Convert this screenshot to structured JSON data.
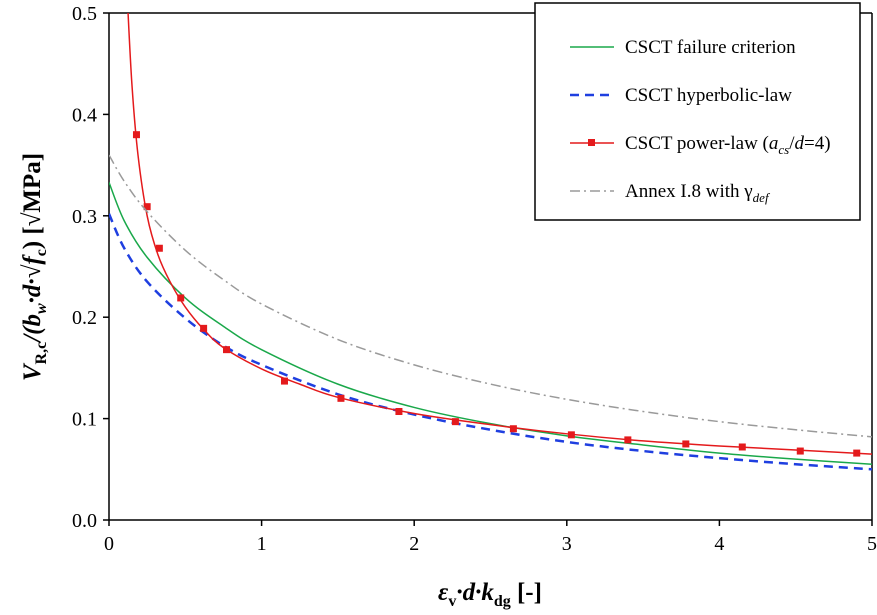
{
  "chart_data": {
    "type": "line",
    "xlim": [
      0,
      5
    ],
    "ylim": [
      0,
      0.5
    ],
    "grid": false,
    "legend_placement": "top-right",
    "x_ticks": [
      "0",
      "1",
      "2",
      "3",
      "4",
      "5"
    ],
    "y_ticks": [
      "0.0",
      "0.1",
      "0.2",
      "0.3",
      "0.4",
      "0.5"
    ],
    "xlabel": {
      "main": "ε",
      "main_sub": "v",
      "mid": "·d·k",
      "mid_sub": "dg",
      "tail": " [-]"
    },
    "ylabel": {
      "v": "V",
      "v_sub": "R,c",
      "a": "/(b",
      "a_sub": "w",
      "b": "·d·√f",
      "b_sub": "c",
      "c": ") [√MPa]"
    },
    "series": [
      {
        "name": "CSCT failure criterion",
        "color": "#1aa84a",
        "style": "solid",
        "x": [
          0,
          0.1,
          0.25,
          0.5,
          0.75,
          1,
          1.5,
          2,
          2.5,
          3,
          3.5,
          4,
          4.5,
          5
        ],
        "y": [
          0.333,
          0.295,
          0.259,
          0.219,
          0.191,
          0.168,
          0.134,
          0.111,
          0.095,
          0.083,
          0.074,
          0.066,
          0.06,
          0.055
        ]
      },
      {
        "name": "CSCT hyperbolic-law",
        "color": "#1f3fe0",
        "style": "dashed",
        "x": [
          0,
          0.1,
          0.25,
          0.5,
          0.75,
          1,
          1.5,
          2,
          2.5,
          3,
          3.5,
          4,
          4.5,
          5
        ],
        "y": [
          0.302,
          0.268,
          0.235,
          0.199,
          0.172,
          0.153,
          0.124,
          0.104,
          0.089,
          0.077,
          0.068,
          0.061,
          0.055,
          0.05
        ]
      },
      {
        "name_parts": {
          "pre": "CSCT power-law  (",
          "a": "a",
          "a_sub": "cs",
          "mid": "/",
          "d": "d",
          "post": "=4)"
        },
        "color": "#e41a1c",
        "style": "solid-markers",
        "x": [
          0.12,
          0.15,
          0.19,
          0.25,
          0.32,
          0.4,
          0.5,
          0.62,
          0.75,
          1,
          1.25,
          1.5,
          2,
          2.5,
          3,
          3.5,
          4,
          4.5,
          5
        ],
        "y": [
          0.515,
          0.43,
          0.36,
          0.3,
          0.262,
          0.235,
          0.21,
          0.188,
          0.17,
          0.149,
          0.134,
          0.121,
          0.105,
          0.094,
          0.085,
          0.078,
          0.073,
          0.069,
          0.065
        ],
        "markers_x": [
          0.18,
          0.25,
          0.33,
          0.47,
          0.62,
          0.77,
          1.15,
          1.52,
          1.9,
          2.27,
          2.65,
          3.03,
          3.4,
          3.78,
          4.15,
          4.53,
          4.9
        ],
        "markers_y": [
          0.38,
          0.309,
          0.268,
          0.219,
          0.189,
          0.168,
          0.137,
          0.12,
          0.107,
          0.097,
          0.09,
          0.084,
          0.079,
          0.075,
          0.072,
          0.068,
          0.066
        ]
      },
      {
        "name_parts": {
          "pre": "Annex I.8 with ",
          "gamma": "γ",
          "gamma_sub": "def"
        },
        "color": "#9a9a9a",
        "style": "dashdot",
        "x": [
          0,
          0.1,
          0.25,
          0.5,
          0.75,
          1,
          1.5,
          2,
          2.5,
          3,
          3.5,
          4,
          4.5,
          5
        ],
        "y": [
          0.36,
          0.334,
          0.304,
          0.266,
          0.237,
          0.213,
          0.178,
          0.153,
          0.134,
          0.119,
          0.107,
          0.097,
          0.089,
          0.082
        ]
      }
    ]
  }
}
